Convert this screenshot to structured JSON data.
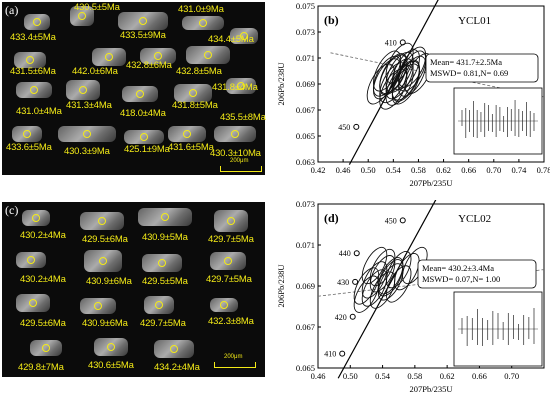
{
  "panel_a": {
    "label": "(a)",
    "ages": [
      "430.5±5Ma",
      "431.0±9Ma",
      "433.4±5Ma",
      "433.5±9Ma",
      "434.4±5Ma",
      "431.5±6Ma",
      "442.0±6Ma",
      "432.8±6Ma",
      "432.8±5Ma",
      "431.8±4Ma",
      "431.3±4Ma",
      "418.0±4Ma",
      "431.8±5Ma",
      "431.0±4Ma",
      "435.5±8Ma",
      "433.6±5Ma",
      "430.3±9Ma",
      "425.1±9Ma",
      "431.6±5Ma",
      "430.3±10Ma"
    ],
    "scale_label": "200μm"
  },
  "panel_c": {
    "label": "(c)",
    "ages": [
      "430.2±4Ma",
      "429.5±6Ma",
      "430.9±5Ma",
      "429.7±5Ma",
      "430.2±4Ma",
      "430.9±6Ma",
      "429.5±5Ma",
      "429.7±5Ma",
      "429.5±6Ma",
      "430.9±6Ma",
      "429.7±5Ma",
      "432.3±8Ma",
      "429.8±7Ma",
      "430.6±5Ma",
      "434.2±4Ma"
    ],
    "scale_label": "200μm"
  },
  "chart_data": [
    {
      "type": "scatter",
      "panel_label": "(b)",
      "title": "YCL01",
      "xlabel": "207Pb/235U",
      "ylabel": "206Pb/238U",
      "xlim": [
        0.42,
        0.78
      ],
      "ylim": [
        0.063,
        0.075
      ],
      "xticks": [
        "0.42",
        "0.46",
        "0.50",
        "0.54",
        "0.58",
        "0.62",
        "0.66",
        "0.70",
        "0.74",
        "0.78"
      ],
      "yticks": [
        "0.063",
        "0.065",
        "0.067",
        "0.069",
        "0.071",
        "0.073",
        "0.075"
      ],
      "concordia_labels": [
        "450",
        "410"
      ],
      "stats_text": [
        "Mean= 431.7±2.5Ma",
        "MSWD= 0.81,N= 0.69"
      ],
      "ellipses_center_x": [
        0.52,
        0.53,
        0.54,
        0.55,
        0.56,
        0.57,
        0.55,
        0.54,
        0.53,
        0.56,
        0.58,
        0.57,
        0.55,
        0.54,
        0.56,
        0.55,
        0.53,
        0.57,
        0.56,
        0.54
      ],
      "ellipses_center_y": [
        0.069,
        0.0694,
        0.0697,
        0.0699,
        0.0701,
        0.0696,
        0.0689,
        0.0686,
        0.07,
        0.0693,
        0.0698,
        0.0703,
        0.0694,
        0.0691,
        0.069,
        0.0706,
        0.0696,
        0.07,
        0.0692,
        0.0698
      ]
    },
    {
      "type": "scatter",
      "panel_label": "(d)",
      "title": "YCL02",
      "xlabel": "207Pb/235U",
      "ylabel": "206Pb/238U",
      "xlim": [
        0.46,
        0.74
      ],
      "ylim": [
        0.065,
        0.073
      ],
      "xticks": [
        "0.46",
        "0.50",
        "0.54",
        "0.58",
        "0.62",
        "0.66",
        "0.70"
      ],
      "yticks": [
        "0.065",
        "0.067",
        "0.069",
        "0.071",
        "0.073"
      ],
      "concordia_labels": [
        "450",
        "440",
        "430",
        "420",
        "410"
      ],
      "stats_text": [
        "Mean= 430.2±3.4Ma",
        "MSWD= 0.07,N= 1.00"
      ],
      "ellipses_center_x": [
        0.52,
        0.53,
        0.54,
        0.55,
        0.56,
        0.54,
        0.53,
        0.55,
        0.57,
        0.52,
        0.56,
        0.54,
        0.53,
        0.55,
        0.58
      ],
      "ellipses_center_y": [
        0.069,
        0.0693,
        0.0696,
        0.0692,
        0.0698,
        0.0688,
        0.07,
        0.0695,
        0.0697,
        0.0686,
        0.0691,
        0.0699,
        0.0689,
        0.0694,
        0.07
      ]
    }
  ]
}
